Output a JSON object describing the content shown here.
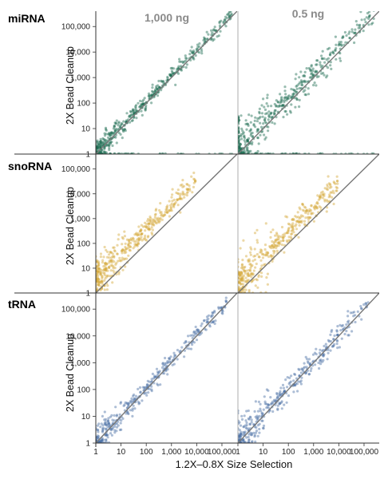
{
  "chart_data": {
    "type": "scatter",
    "log_scale": true,
    "grid": false,
    "xlabel": "1.2X–0.8X Size Selection",
    "ylabel": "2X Bead Cleanup",
    "columns": [
      "1,000 ng",
      "0.5 ng"
    ],
    "x_ticks": [
      "1",
      "10",
      "100",
      "1,000",
      "10,000",
      "100,000"
    ],
    "y_ticks": [
      "1",
      "10",
      "100",
      "1,000",
      "10,000",
      "100,000"
    ],
    "xlim": [
      1,
      400000
    ],
    "ylim": [
      1,
      400000
    ],
    "reference_line": "y = x",
    "rows": [
      {
        "label": "miRNA",
        "color": "#1b6b50",
        "panels": [
          {
            "column": "1,000 ng",
            "slope": 1.0,
            "offset": 0.08,
            "spread": 0.13,
            "x_range": [
              1,
              250000
            ],
            "points": 520,
            "low_floor": true
          },
          {
            "column": "0.5 ng",
            "slope": 1.0,
            "offset": 0.15,
            "spread": 0.28,
            "x_range": [
              1,
              250000
            ],
            "points": 520,
            "low_floor": true
          }
        ]
      },
      {
        "label": "snoRNA",
        "color": "#d4a93a",
        "panels": [
          {
            "column": "1,000 ng",
            "slope": 1.0,
            "offset": 0.55,
            "spread": 0.22,
            "x_range": [
              1,
              9000
            ],
            "points": 420,
            "low_floor": false
          },
          {
            "column": "0.5 ng",
            "slope": 1.0,
            "offset": 0.45,
            "spread": 0.28,
            "x_range": [
              1,
              9000
            ],
            "points": 420,
            "low_floor": false
          }
        ]
      },
      {
        "label": "tRNA",
        "color": "#4a6fa5",
        "panels": [
          {
            "column": "1,000 ng",
            "slope": 1.0,
            "offset": 0.05,
            "spread": 0.16,
            "x_range": [
              1,
              150000
            ],
            "points": 380,
            "low_floor": false
          },
          {
            "column": "0.5 ng",
            "slope": 1.0,
            "offset": 0.05,
            "spread": 0.22,
            "x_range": [
              1,
              150000
            ],
            "points": 380,
            "low_floor": false
          }
        ]
      }
    ]
  }
}
